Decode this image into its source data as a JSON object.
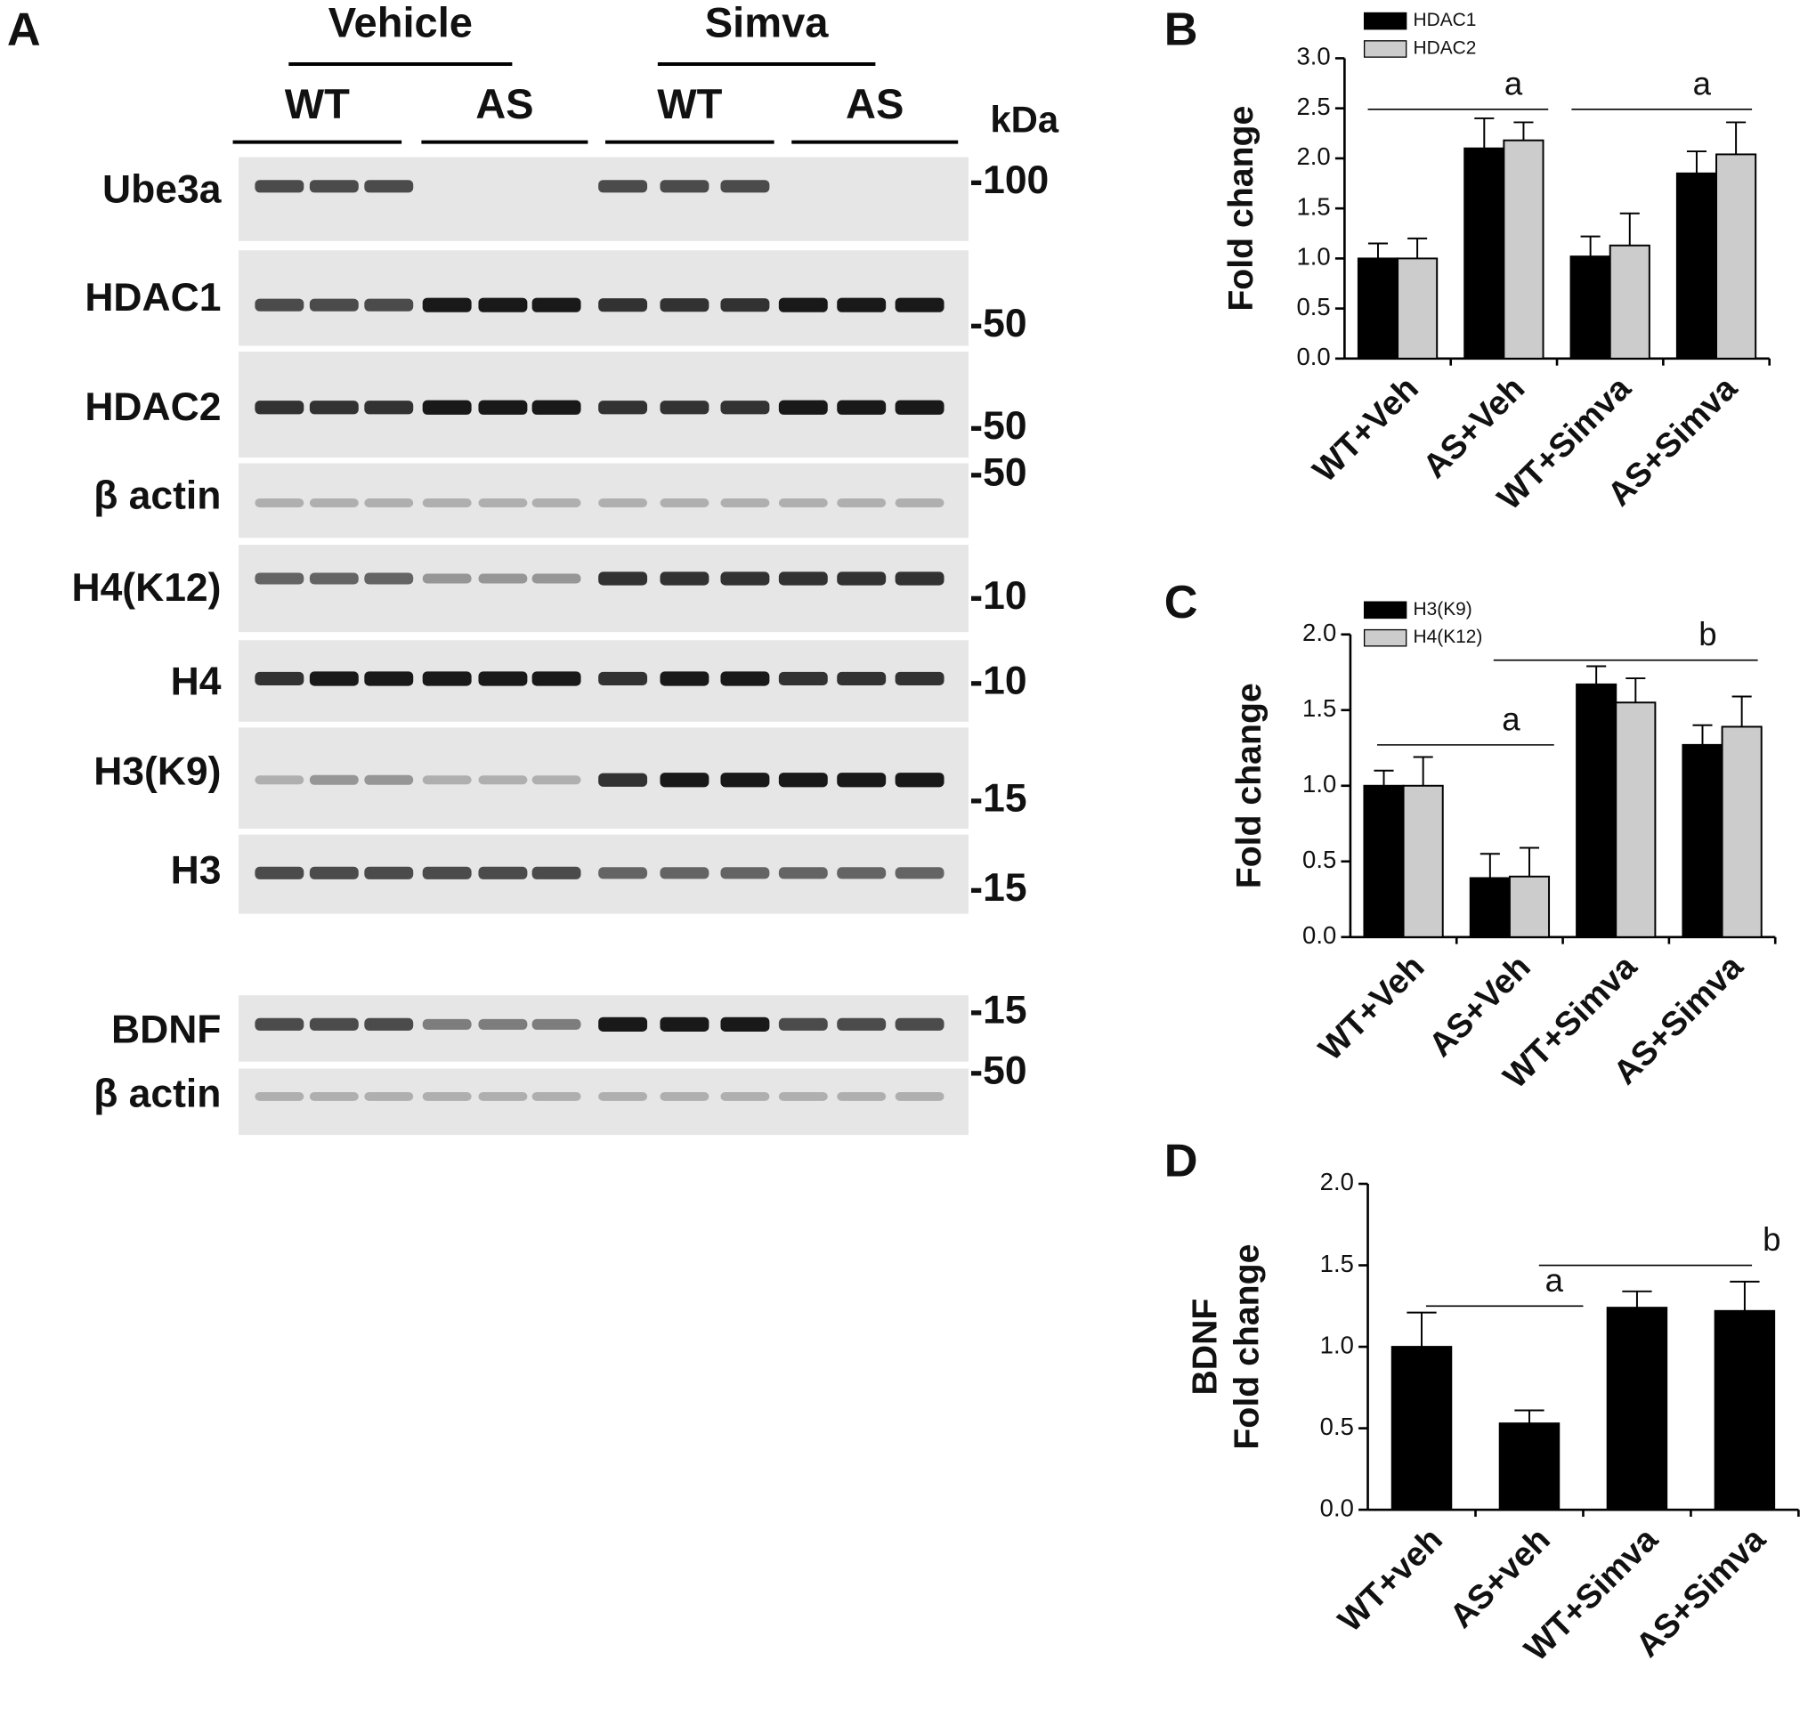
{
  "blot": {
    "panel": "A",
    "groups": [
      "Vehicle",
      "Simva"
    ],
    "subgroups": [
      "WT",
      "AS",
      "WT",
      "AS"
    ],
    "unit": "kDa",
    "rows": [
      {
        "label": "Ube3a",
        "marker": "-100"
      },
      {
        "label": "HDAC1",
        "marker": "-50"
      },
      {
        "label": "HDAC2",
        "marker": "-50"
      },
      {
        "label": "β actin",
        "marker": "-50"
      },
      {
        "label": "H4(K12)",
        "marker": "-10"
      },
      {
        "label": "H4",
        "marker": "-10"
      },
      {
        "label": "H3(K9)",
        "marker": "-15"
      },
      {
        "label": "H3",
        "marker": "-15"
      },
      {
        "label": "BDNF",
        "marker": "-15"
      },
      {
        "label": "β actin",
        "marker": "-50"
      }
    ]
  },
  "chart_data": [
    {
      "type": "bar",
      "panel": "B",
      "ylabel": "Fold change",
      "categories": [
        "WT+Veh",
        "AS+Veh",
        "WT+Simva",
        "AS+Simva"
      ],
      "series": [
        {
          "name": "HDAC1",
          "color": "#000000",
          "values": [
            1.0,
            2.1,
            1.02,
            1.85
          ],
          "errors": [
            0.15,
            0.3,
            0.2,
            0.22
          ]
        },
        {
          "name": "HDAC2",
          "color": "#cccccc",
          "values": [
            1.0,
            2.18,
            1.13,
            2.04
          ],
          "errors": [
            0.2,
            0.18,
            0.32,
            0.32
          ]
        }
      ],
      "ylim": [
        0,
        3
      ],
      "yticks": [
        {
          "value": 0,
          "label": "0.0"
        },
        0.5,
        {
          "value": 1,
          "label": "1.0"
        },
        1.5,
        {
          "value": 2,
          "label": "2.0"
        },
        2.5,
        {
          "value": 3,
          "label": "3.0"
        }
      ],
      "annotations": [
        "a",
        "a"
      ],
      "legend": "upper left",
      "grid": false
    },
    {
      "type": "bar",
      "panel": "C",
      "ylabel": "Fold change",
      "categories": [
        "WT+Veh",
        "AS+Veh",
        "WT+Simva",
        "AS+Simva"
      ],
      "series": [
        {
          "name": "H3(K9)",
          "color": "#000000",
          "values": [
            1.0,
            0.39,
            1.67,
            1.27
          ],
          "errors": [
            0.1,
            0.16,
            0.12,
            0.13
          ]
        },
        {
          "name": "H4(K12)",
          "color": "#cccccc",
          "values": [
            1.0,
            0.4,
            1.55,
            1.39
          ],
          "errors": [
            0.19,
            0.19,
            0.16,
            0.2
          ]
        }
      ],
      "ylim": [
        0,
        2
      ],
      "yticks": [
        {
          "value": 0,
          "label": "0.0"
        },
        0.5,
        {
          "value": 1,
          "label": "1.0"
        },
        1.5,
        {
          "value": 2,
          "label": "2.0"
        }
      ],
      "annotations": [
        "a",
        "b"
      ],
      "legend": "upper left",
      "grid": false
    },
    {
      "type": "bar",
      "panel": "D",
      "ylabel": [
        "BDNF",
        "Fold change"
      ],
      "categories": [
        "WT+veh",
        "AS+veh",
        "WT+Simva",
        "AS+Simva"
      ],
      "series": [
        {
          "name": "BDNF",
          "color": "#000000",
          "values": [
            1.0,
            0.53,
            1.24,
            1.22
          ],
          "errors": [
            0.21,
            0.08,
            0.1,
            0.18
          ]
        }
      ],
      "ylim": [
        0,
        2
      ],
      "yticks": [
        {
          "value": 0,
          "label": "0.0"
        },
        0.5,
        {
          "value": 1,
          "label": "1.0"
        },
        1.5,
        {
          "value": 2,
          "label": "2.0"
        }
      ],
      "annotations": [
        "a",
        "b"
      ],
      "grid": false
    }
  ]
}
